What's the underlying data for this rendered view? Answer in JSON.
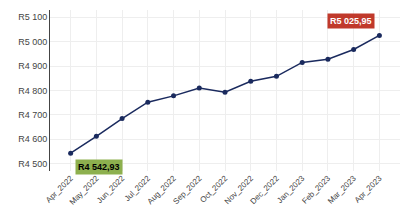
{
  "chart_data": {
    "type": "line",
    "categories": [
      "Apr_2022",
      "May_2022",
      "Jun_2022",
      "Jul_2022",
      "Aug_2022",
      "Sep_2022",
      "Oct_2022",
      "Nov_2022",
      "Dec_2022",
      "Jan_2023",
      "Feb_2023",
      "Mar_2023",
      "Apr_2023"
    ],
    "values": [
      4542.93,
      4612,
      4685,
      4752,
      4778,
      4810,
      4793,
      4838,
      4858,
      4915,
      4928,
      4968,
      5025.95
    ],
    "color": "#1a2a5e",
    "marker": "circle",
    "ylim": [
      4470,
      5130
    ],
    "yticks": [
      {
        "value": 4500,
        "label": "R4 500"
      },
      {
        "value": 4600,
        "label": "R4 600"
      },
      {
        "value": 4700,
        "label": "R4 700"
      },
      {
        "value": 4800,
        "label": "R4 800"
      },
      {
        "value": 4900,
        "label": "R4 900"
      },
      {
        "value": 5000,
        "label": "R5 000"
      },
      {
        "value": 5100,
        "label": "R5 100"
      }
    ],
    "grid": true,
    "annotations": [
      {
        "text": "R4 542,93",
        "color": "#8db04e"
      },
      {
        "text": "R5 025,95",
        "color": "#c0392b"
      }
    ]
  }
}
